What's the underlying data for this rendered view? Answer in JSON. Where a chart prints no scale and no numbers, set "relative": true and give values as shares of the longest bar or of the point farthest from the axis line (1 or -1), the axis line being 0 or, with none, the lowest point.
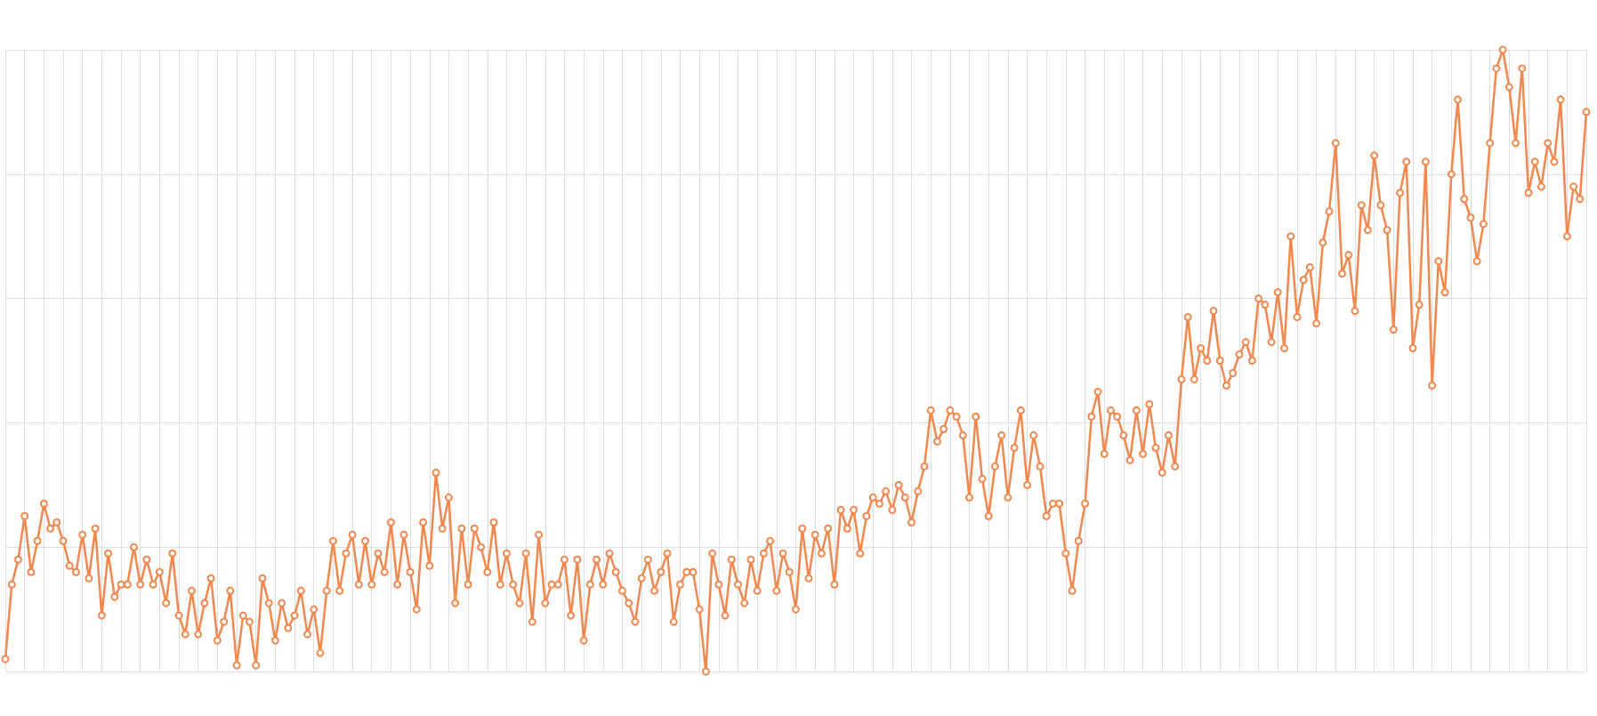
{
  "chart_data": {
    "type": "line",
    "relative": true,
    "grid": true,
    "marker": "circle",
    "line_style": "solid",
    "categories": [
      null,
      null,
      null,
      null,
      null,
      null,
      null,
      null,
      null,
      null,
      null,
      null,
      null,
      null,
      null,
      null,
      null,
      null,
      null,
      null,
      null,
      null,
      null,
      null,
      null,
      null,
      null,
      null,
      null,
      null,
      null,
      null,
      null,
      null,
      null,
      null,
      null,
      null,
      null,
      null,
      null,
      null,
      null,
      null,
      null,
      null,
      null,
      null,
      null,
      null,
      null,
      null,
      null,
      null,
      null,
      null,
      null,
      null,
      null,
      null,
      null,
      null,
      null,
      null,
      null,
      null,
      null,
      null,
      null,
      null,
      null,
      null,
      null,
      null,
      null,
      null,
      null,
      null,
      null,
      null,
      null,
      null,
      null,
      null,
      null,
      null,
      null,
      null,
      null,
      null,
      null,
      null,
      null,
      null,
      null,
      null,
      null,
      null,
      null,
      null,
      null,
      null,
      null,
      null,
      null,
      null,
      null,
      null,
      null,
      null,
      null,
      null,
      null,
      null,
      null,
      null,
      null,
      null,
      null,
      null,
      null,
      null,
      null,
      null,
      null,
      null,
      null,
      null,
      null,
      null,
      null,
      null,
      null,
      null,
      null,
      null,
      null,
      null,
      null,
      null,
      null,
      null,
      null,
      null,
      null,
      null,
      null,
      null,
      null,
      null,
      null,
      null,
      null,
      null,
      null,
      null,
      null,
      null,
      null,
      null,
      null,
      null,
      null,
      null,
      null,
      null,
      null,
      null,
      null,
      null,
      null,
      null,
      null,
      null,
      null,
      null,
      null,
      null,
      null,
      null,
      null,
      null,
      null,
      null,
      null,
      null,
      null,
      null,
      null,
      null,
      null,
      null,
      null,
      null,
      null,
      null,
      null,
      null,
      null,
      null,
      null,
      null,
      null,
      null,
      null,
      null,
      null,
      null,
      null,
      null,
      null,
      null,
      null,
      null,
      null,
      null,
      null,
      null,
      null,
      null,
      null,
      null,
      null,
      null,
      null,
      null,
      null,
      null,
      null,
      null,
      null,
      null,
      null,
      null,
      null,
      null,
      null,
      null,
      null,
      null,
      null,
      null,
      null,
      null,
      null,
      null,
      null
    ],
    "series": [
      {
        "color": "#f0884f",
        "values": [
          0.02,
          0.14,
          0.18,
          0.25,
          0.16,
          0.21,
          0.27,
          0.23,
          0.24,
          0.21,
          0.17,
          0.16,
          0.22,
          0.15,
          0.23,
          0.09,
          0.19,
          0.12,
          0.14,
          0.14,
          0.2,
          0.14,
          0.18,
          0.14,
          0.16,
          0.11,
          0.19,
          0.09,
          0.06,
          0.13,
          0.06,
          0.11,
          0.15,
          0.05,
          0.08,
          0.13,
          0.01,
          0.09,
          0.08,
          0.01,
          0.15,
          0.11,
          0.05,
          0.11,
          0.07,
          0.09,
          0.13,
          0.06,
          0.1,
          0.03,
          0.13,
          0.21,
          0.13,
          0.19,
          0.22,
          0.14,
          0.21,
          0.14,
          0.19,
          0.16,
          0.24,
          0.14,
          0.22,
          0.16,
          0.1,
          0.24,
          0.17,
          0.32,
          0.23,
          0.28,
          0.11,
          0.23,
          0.14,
          0.23,
          0.2,
          0.16,
          0.24,
          0.14,
          0.19,
          0.14,
          0.11,
          0.19,
          0.08,
          0.22,
          0.11,
          0.14,
          0.14,
          0.18,
          0.09,
          0.18,
          0.05,
          0.14,
          0.18,
          0.14,
          0.19,
          0.16,
          0.13,
          0.11,
          0.08,
          0.15,
          0.18,
          0.13,
          0.16,
          0.19,
          0.08,
          0.14,
          0.16,
          0.16,
          0.1,
          0,
          0.19,
          0.14,
          0.09,
          0.18,
          0.14,
          0.11,
          0.18,
          0.13,
          0.19,
          0.21,
          0.13,
          0.19,
          0.16,
          0.1,
          0.23,
          0.15,
          0.22,
          0.19,
          0.23,
          0.14,
          0.26,
          0.23,
          0.26,
          0.19,
          0.25,
          0.28,
          0.27,
          0.29,
          0.26,
          0.3,
          0.28,
          0.24,
          0.29,
          0.33,
          0.42,
          0.37,
          0.39,
          0.42,
          0.41,
          0.38,
          0.28,
          0.41,
          0.31,
          0.25,
          0.33,
          0.38,
          0.28,
          0.36,
          0.42,
          0.3,
          0.38,
          0.33,
          0.25,
          0.27,
          0.27,
          0.19,
          0.13,
          0.21,
          0.27,
          0.41,
          0.45,
          0.35,
          0.42,
          0.41,
          0.38,
          0.34,
          0.42,
          0.35,
          0.43,
          0.36,
          0.32,
          0.38,
          0.33,
          0.47,
          0.57,
          0.47,
          0.52,
          0.5,
          0.58,
          0.5,
          0.46,
          0.48,
          0.51,
          0.53,
          0.5,
          0.6,
          0.59,
          0.53,
          0.61,
          0.52,
          0.7,
          0.57,
          0.63,
          0.65,
          0.56,
          0.69,
          0.74,
          0.85,
          0.64,
          0.67,
          0.58,
          0.75,
          0.71,
          0.83,
          0.75,
          0.71,
          0.55,
          0.77,
          0.82,
          0.52,
          0.59,
          0.82,
          0.46,
          0.66,
          0.61,
          0.8,
          0.92,
          0.76,
          0.73,
          0.66,
          0.72,
          0.85,
          0.97,
          1,
          0.94,
          0.85,
          0.97,
          0.77,
          0.82,
          0.78,
          0.85,
          0.82,
          0.92,
          0.7,
          0.78,
          0.76,
          0.9
        ]
      }
    ]
  }
}
